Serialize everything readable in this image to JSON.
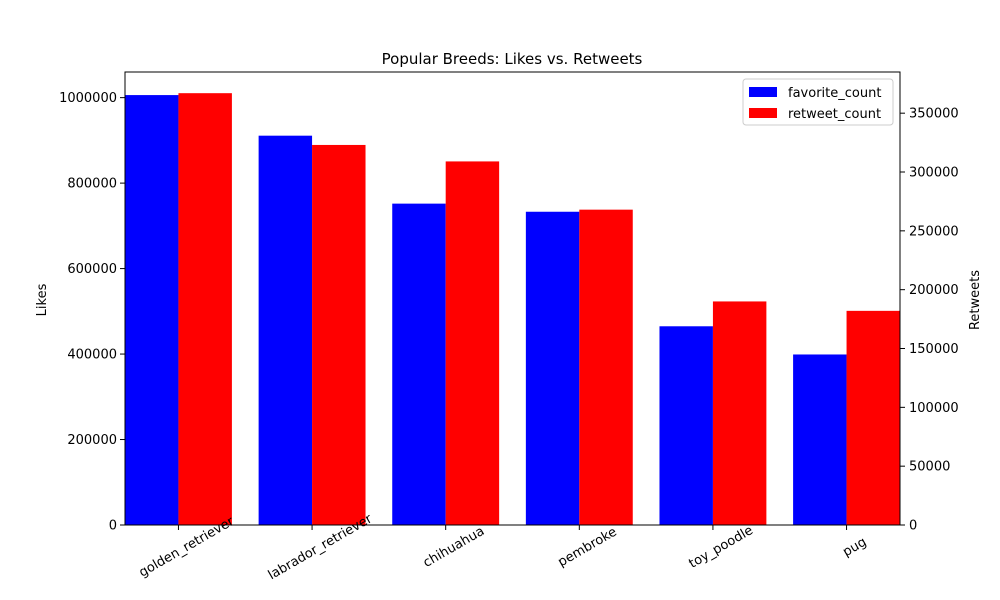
{
  "chart_data": {
    "type": "bar",
    "title": "Popular Breeds: Likes vs. Retweets",
    "xlabel": "",
    "ylabel_left": "Likes",
    "ylabel_right": "Retweets",
    "categories": [
      "golden_retriever",
      "labrador_retriever",
      "chihuahua",
      "pembroke",
      "toy_poodle",
      "pug"
    ],
    "series": [
      {
        "name": "favorite_count",
        "axis": "left",
        "color": "#0000ff",
        "values": [
          1006000,
          911000,
          752000,
          733000,
          465000,
          399000
        ]
      },
      {
        "name": "retweet_count",
        "axis": "right",
        "color": "#ff0000",
        "values": [
          367000,
          323000,
          309000,
          268000,
          190000,
          182000
        ]
      }
    ],
    "left_axis": {
      "range": [
        0,
        1060000
      ],
      "ticks": [
        0,
        200000,
        400000,
        600000,
        800000,
        1000000
      ]
    },
    "right_axis": {
      "range": [
        0,
        385000
      ],
      "ticks": [
        0,
        50000,
        100000,
        150000,
        200000,
        250000,
        300000,
        350000
      ]
    },
    "x_tick_rotation": 30,
    "grid": false,
    "legend": {
      "placement": "top-right",
      "entries": [
        "favorite_count",
        "retweet_count"
      ]
    }
  }
}
